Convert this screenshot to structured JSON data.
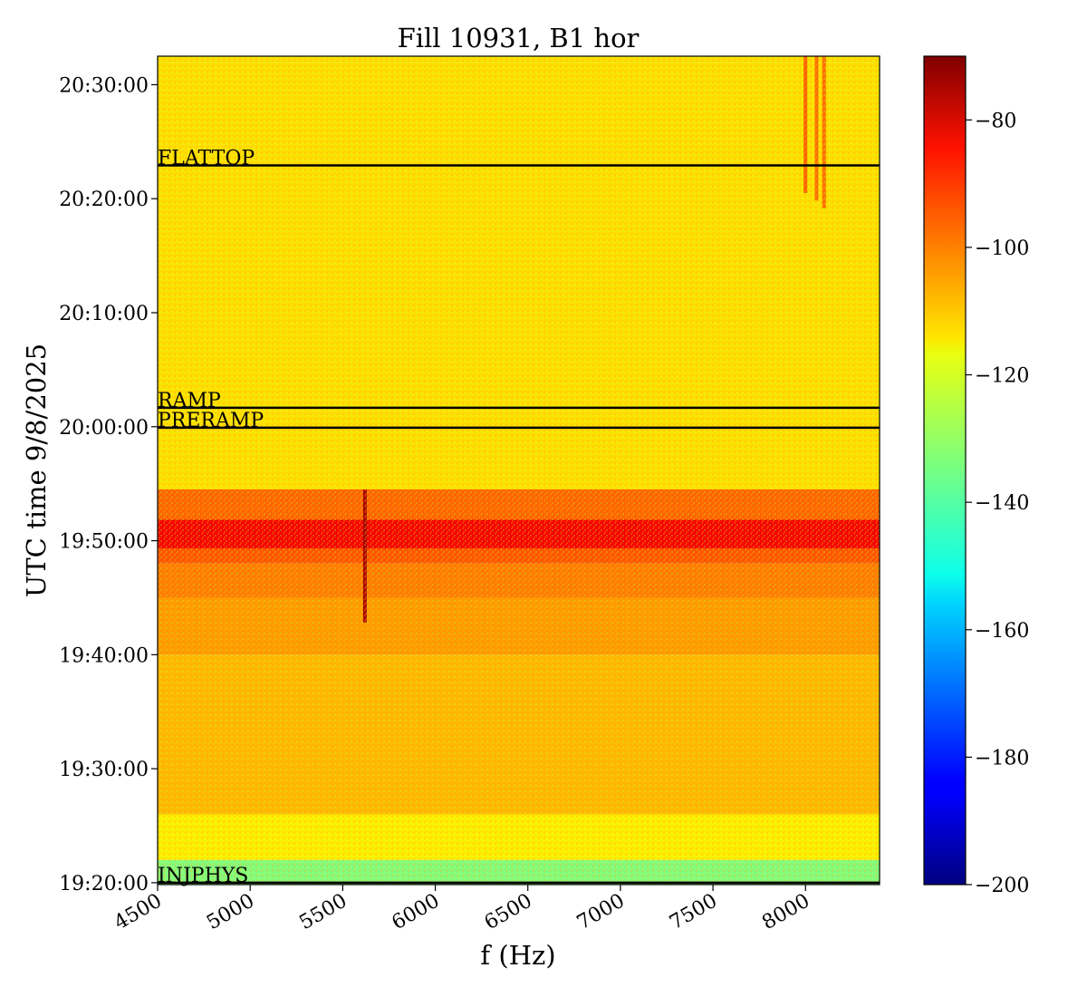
{
  "chart_data": {
    "type": "heatmap",
    "title": "Fill 10931, B1 hor",
    "xlabel": "f (Hz)",
    "ylabel": "UTC time 9/8/2025",
    "xlim": [
      4500,
      8400
    ],
    "x_ticks": [
      "4500",
      "5000",
      "5500",
      "6000",
      "6500",
      "7000",
      "7500",
      "8000"
    ],
    "x_tick_values": [
      4500,
      5000,
      5500,
      6000,
      6500,
      7000,
      7500,
      8000
    ],
    "ylim": [
      "19:19:50",
      "20:32:30"
    ],
    "y_ticks": [
      "19:20:00",
      "19:30:00",
      "19:40:00",
      "19:50:00",
      "20:00:00",
      "20:10:00",
      "20:20:00",
      "20:30:00"
    ],
    "colorbar": {
      "colormap": "jet",
      "range": [
        -200,
        -70
      ],
      "ticks": [
        "−200",
        "−180",
        "−160",
        "−140",
        "−120",
        "−100",
        "−80"
      ],
      "tick_values": [
        -200,
        -180,
        -160,
        -140,
        -120,
        -100,
        -80
      ]
    },
    "phase_markers": [
      {
        "label": "INJPHYS",
        "time": "19:20:00"
      },
      {
        "label": "PRERAMP",
        "time": "19:59:55"
      },
      {
        "label": "RAMP",
        "time": "20:01:40"
      },
      {
        "label": "FLATTOP",
        "time": "20:22:55"
      }
    ],
    "time_bands": [
      {
        "start": "19:19:50",
        "end": "19:22:00",
        "level_db": -135
      },
      {
        "start": "19:22:00",
        "end": "19:26:00",
        "level_db": -117
      },
      {
        "start": "19:26:00",
        "end": "19:40:00",
        "level_db": -110
      },
      {
        "start": "19:40:00",
        "end": "19:45:00",
        "level_db": -106
      },
      {
        "start": "19:45:00",
        "end": "19:48:00",
        "level_db": -102
      },
      {
        "start": "19:48:00",
        "end": "19:49:20",
        "level_db": -97
      },
      {
        "start": "19:49:20",
        "end": "19:51:50",
        "level_db": -85
      },
      {
        "start": "19:51:50",
        "end": "19:54:30",
        "level_db": -99
      },
      {
        "start": "19:54:30",
        "end": "20:32:30",
        "level_db": -115
      }
    ],
    "spectral_lines": [
      {
        "f_hz": 5620,
        "start": "19:42:50",
        "end": "19:54:30",
        "level_db": -75
      },
      {
        "f_hz": 8000,
        "start": "20:20:30",
        "end": "20:32:30",
        "level_db": -98
      },
      {
        "f_hz": 8060,
        "start": "20:19:50",
        "end": "20:32:30",
        "level_db": -100
      },
      {
        "f_hz": 8100,
        "start": "20:19:10",
        "end": "20:32:30",
        "level_db": -100
      }
    ]
  }
}
